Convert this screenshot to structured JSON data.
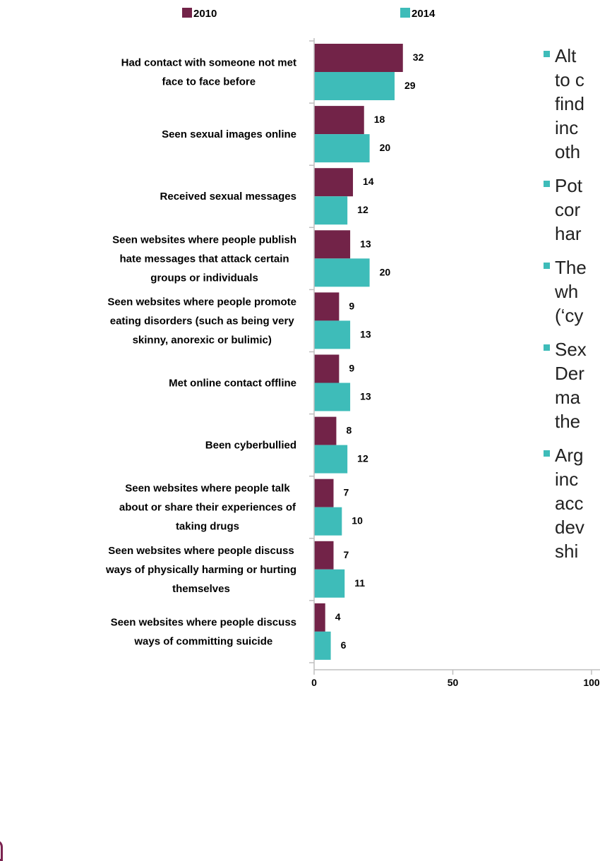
{
  "colors": {
    "series_2010": "#722348",
    "series_2014": "#3ebcb9",
    "bullet": "#3ebcb9",
    "axis": "#bfbfbf"
  },
  "chart_data": {
    "type": "bar",
    "orientation": "horizontal",
    "categories": [
      [
        "Had contact with someone not met",
        "face to face before"
      ],
      [
        "Seen sexual images online"
      ],
      [
        "Received sexual messages"
      ],
      [
        "Seen websites where people publish",
        "hate messages that attack certain",
        "groups or individuals"
      ],
      [
        "Seen websites where people promote",
        "eating disorders (such as being very",
        "skinny, anorexic or bulimic)"
      ],
      [
        "Met online contact offline"
      ],
      [
        "Been cyberbullied"
      ],
      [
        "Seen websites where people talk",
        "about or share their experiences of",
        "taking drugs"
      ],
      [
        "Seen websites where people discuss",
        "ways of physically harming or hurting",
        "themselves"
      ],
      [
        "Seen websites where people discuss",
        "ways of committing suicide"
      ]
    ],
    "series": [
      {
        "name": "2010",
        "values": [
          32,
          18,
          14,
          13,
          9,
          9,
          8,
          7,
          7,
          4
        ]
      },
      {
        "name": "2014",
        "values": [
          29,
          20,
          12,
          20,
          13,
          13,
          12,
          10,
          11,
          6
        ]
      }
    ],
    "xlim": [
      0,
      100
    ],
    "xticks": [
      "0",
      "50",
      "100"
    ],
    "legend_position": "top",
    "grid": false
  },
  "notes": [
    [
      "Alt",
      "to c",
      "find",
      "inc",
      "oth"
    ],
    [
      "Pot",
      "cor",
      "har"
    ],
    [
      "The",
      "wh",
      "(‘cy"
    ],
    [
      "Sex",
      "Der",
      "ma",
      "the"
    ],
    [
      "Arg",
      "inc",
      "acc",
      "dev",
      "shi"
    ]
  ]
}
